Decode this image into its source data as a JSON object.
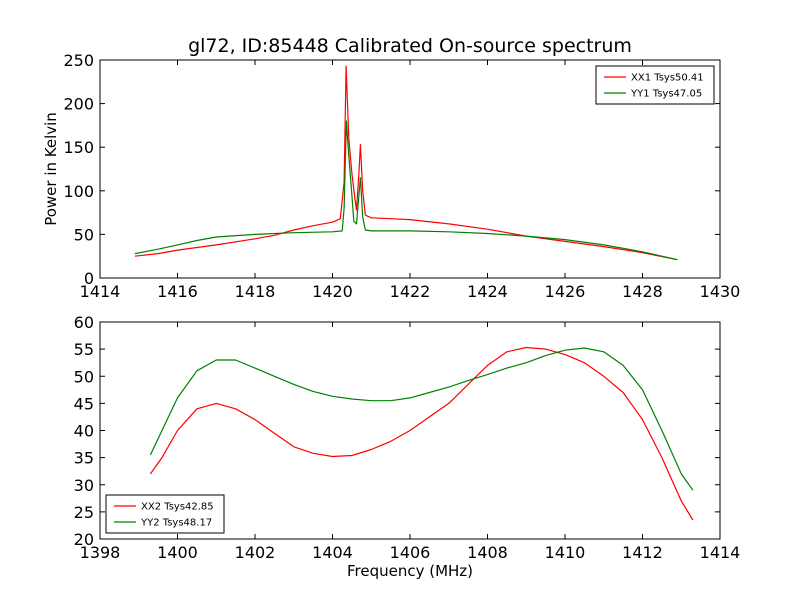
{
  "chart_data": [
    {
      "type": "line",
      "title": "gl72, ID:85448 Calibrated On-source spectrum",
      "xlabel": "",
      "ylabel": "Power in Kelvin",
      "xlim": [
        1414,
        1430
      ],
      "ylim": [
        0,
        250
      ],
      "xticks": [
        1414,
        1416,
        1418,
        1420,
        1422,
        1424,
        1426,
        1428,
        1430
      ],
      "yticks": [
        0,
        50,
        100,
        150,
        200,
        250
      ],
      "grid": false,
      "legend_position": "top-right",
      "series": [
        {
          "name": "XX1 Tsys50.41",
          "color": "#ff0000",
          "points": [
            [
              1414.9,
              25
            ],
            [
              1415.5,
              28
            ],
            [
              1416,
              32
            ],
            [
              1417,
              38
            ],
            [
              1418,
              45
            ],
            [
              1418.5,
              49
            ],
            [
              1419,
              55
            ],
            [
              1419.5,
              60
            ],
            [
              1420,
              64
            ],
            [
              1420.2,
              68
            ],
            [
              1420.3,
              110
            ],
            [
              1420.35,
              243
            ],
            [
              1420.42,
              160
            ],
            [
              1420.5,
              120
            ],
            [
              1420.58,
              90
            ],
            [
              1420.62,
              78
            ],
            [
              1420.68,
              120
            ],
            [
              1420.72,
              153
            ],
            [
              1420.78,
              100
            ],
            [
              1420.85,
              72
            ],
            [
              1421,
              69
            ],
            [
              1421.5,
              68
            ],
            [
              1422,
              67
            ],
            [
              1423,
              62
            ],
            [
              1424,
              56
            ],
            [
              1425,
              48
            ],
            [
              1426,
              42
            ],
            [
              1427,
              36
            ],
            [
              1428,
              29
            ],
            [
              1428.9,
              21
            ]
          ]
        },
        {
          "name": "YY1 Tsys47.05",
          "color": "#008000",
          "points": [
            [
              1414.9,
              28
            ],
            [
              1415.5,
              33
            ],
            [
              1416,
              38
            ],
            [
              1416.5,
              43
            ],
            [
              1417,
              47
            ],
            [
              1418,
              50
            ],
            [
              1419,
              52
            ],
            [
              1420,
              53
            ],
            [
              1420.25,
              54
            ],
            [
              1420.3,
              80
            ],
            [
              1420.36,
              180
            ],
            [
              1420.42,
              140
            ],
            [
              1420.5,
              95
            ],
            [
              1420.55,
              65
            ],
            [
              1420.62,
              62
            ],
            [
              1420.68,
              95
            ],
            [
              1420.72,
              115
            ],
            [
              1420.78,
              70
            ],
            [
              1420.85,
              55
            ],
            [
              1421,
              54
            ],
            [
              1422,
              54
            ],
            [
              1423,
              53
            ],
            [
              1424,
              51
            ],
            [
              1425,
              48
            ],
            [
              1426,
              44
            ],
            [
              1427,
              38
            ],
            [
              1428,
              30
            ],
            [
              1428.9,
              21
            ]
          ]
        }
      ]
    },
    {
      "type": "line",
      "title": "",
      "xlabel": "Frequency (MHz)",
      "ylabel": "",
      "xlim": [
        1398,
        1414
      ],
      "ylim": [
        20,
        60
      ],
      "xticks": [
        1398,
        1400,
        1402,
        1404,
        1406,
        1408,
        1410,
        1412,
        1414
      ],
      "yticks": [
        20,
        25,
        30,
        35,
        40,
        45,
        50,
        55,
        60
      ],
      "grid": false,
      "legend_position": "bottom-left",
      "series": [
        {
          "name": "XX2 Tsys42.85",
          "color": "#ff0000",
          "points": [
            [
              1399.3,
              32
            ],
            [
              1399.6,
              35
            ],
            [
              1400,
              40
            ],
            [
              1400.5,
              44
            ],
            [
              1401,
              45
            ],
            [
              1401.5,
              44
            ],
            [
              1402,
              42
            ],
            [
              1402.5,
              39.5
            ],
            [
              1403,
              37
            ],
            [
              1403.5,
              35.8
            ],
            [
              1404,
              35.2
            ],
            [
              1404.5,
              35.4
            ],
            [
              1405,
              36.5
            ],
            [
              1405.5,
              38
            ],
            [
              1406,
              40
            ],
            [
              1406.5,
              42.5
            ],
            [
              1407,
              45
            ],
            [
              1407.5,
              48.5
            ],
            [
              1408,
              52
            ],
            [
              1408.5,
              54.5
            ],
            [
              1409,
              55.3
            ],
            [
              1409.5,
              55
            ],
            [
              1410,
              54
            ],
            [
              1410.5,
              52.5
            ],
            [
              1411,
              50
            ],
            [
              1411.5,
              47
            ],
            [
              1412,
              42
            ],
            [
              1412.5,
              35
            ],
            [
              1413,
              27
            ],
            [
              1413.3,
              23.5
            ]
          ]
        },
        {
          "name": "YY2 Tsys48.17",
          "color": "#008000",
          "points": [
            [
              1399.3,
              35.5
            ],
            [
              1399.6,
              40
            ],
            [
              1400,
              46
            ],
            [
              1400.5,
              51
            ],
            [
              1401,
              53
            ],
            [
              1401.5,
              53
            ],
            [
              1402,
              51.5
            ],
            [
              1402.5,
              50
            ],
            [
              1403,
              48.5
            ],
            [
              1403.5,
              47.2
            ],
            [
              1404,
              46.3
            ],
            [
              1404.5,
              45.8
            ],
            [
              1405,
              45.5
            ],
            [
              1405.5,
              45.5
            ],
            [
              1406,
              46
            ],
            [
              1406.5,
              47
            ],
            [
              1407,
              48
            ],
            [
              1407.5,
              49.2
            ],
            [
              1408,
              50.3
            ],
            [
              1408.5,
              51.5
            ],
            [
              1409,
              52.5
            ],
            [
              1409.5,
              53.8
            ],
            [
              1410,
              54.8
            ],
            [
              1410.5,
              55.2
            ],
            [
              1411,
              54.5
            ],
            [
              1411.5,
              52
            ],
            [
              1412,
              47.5
            ],
            [
              1412.5,
              40
            ],
            [
              1413,
              32
            ],
            [
              1413.3,
              29
            ]
          ]
        }
      ]
    }
  ]
}
